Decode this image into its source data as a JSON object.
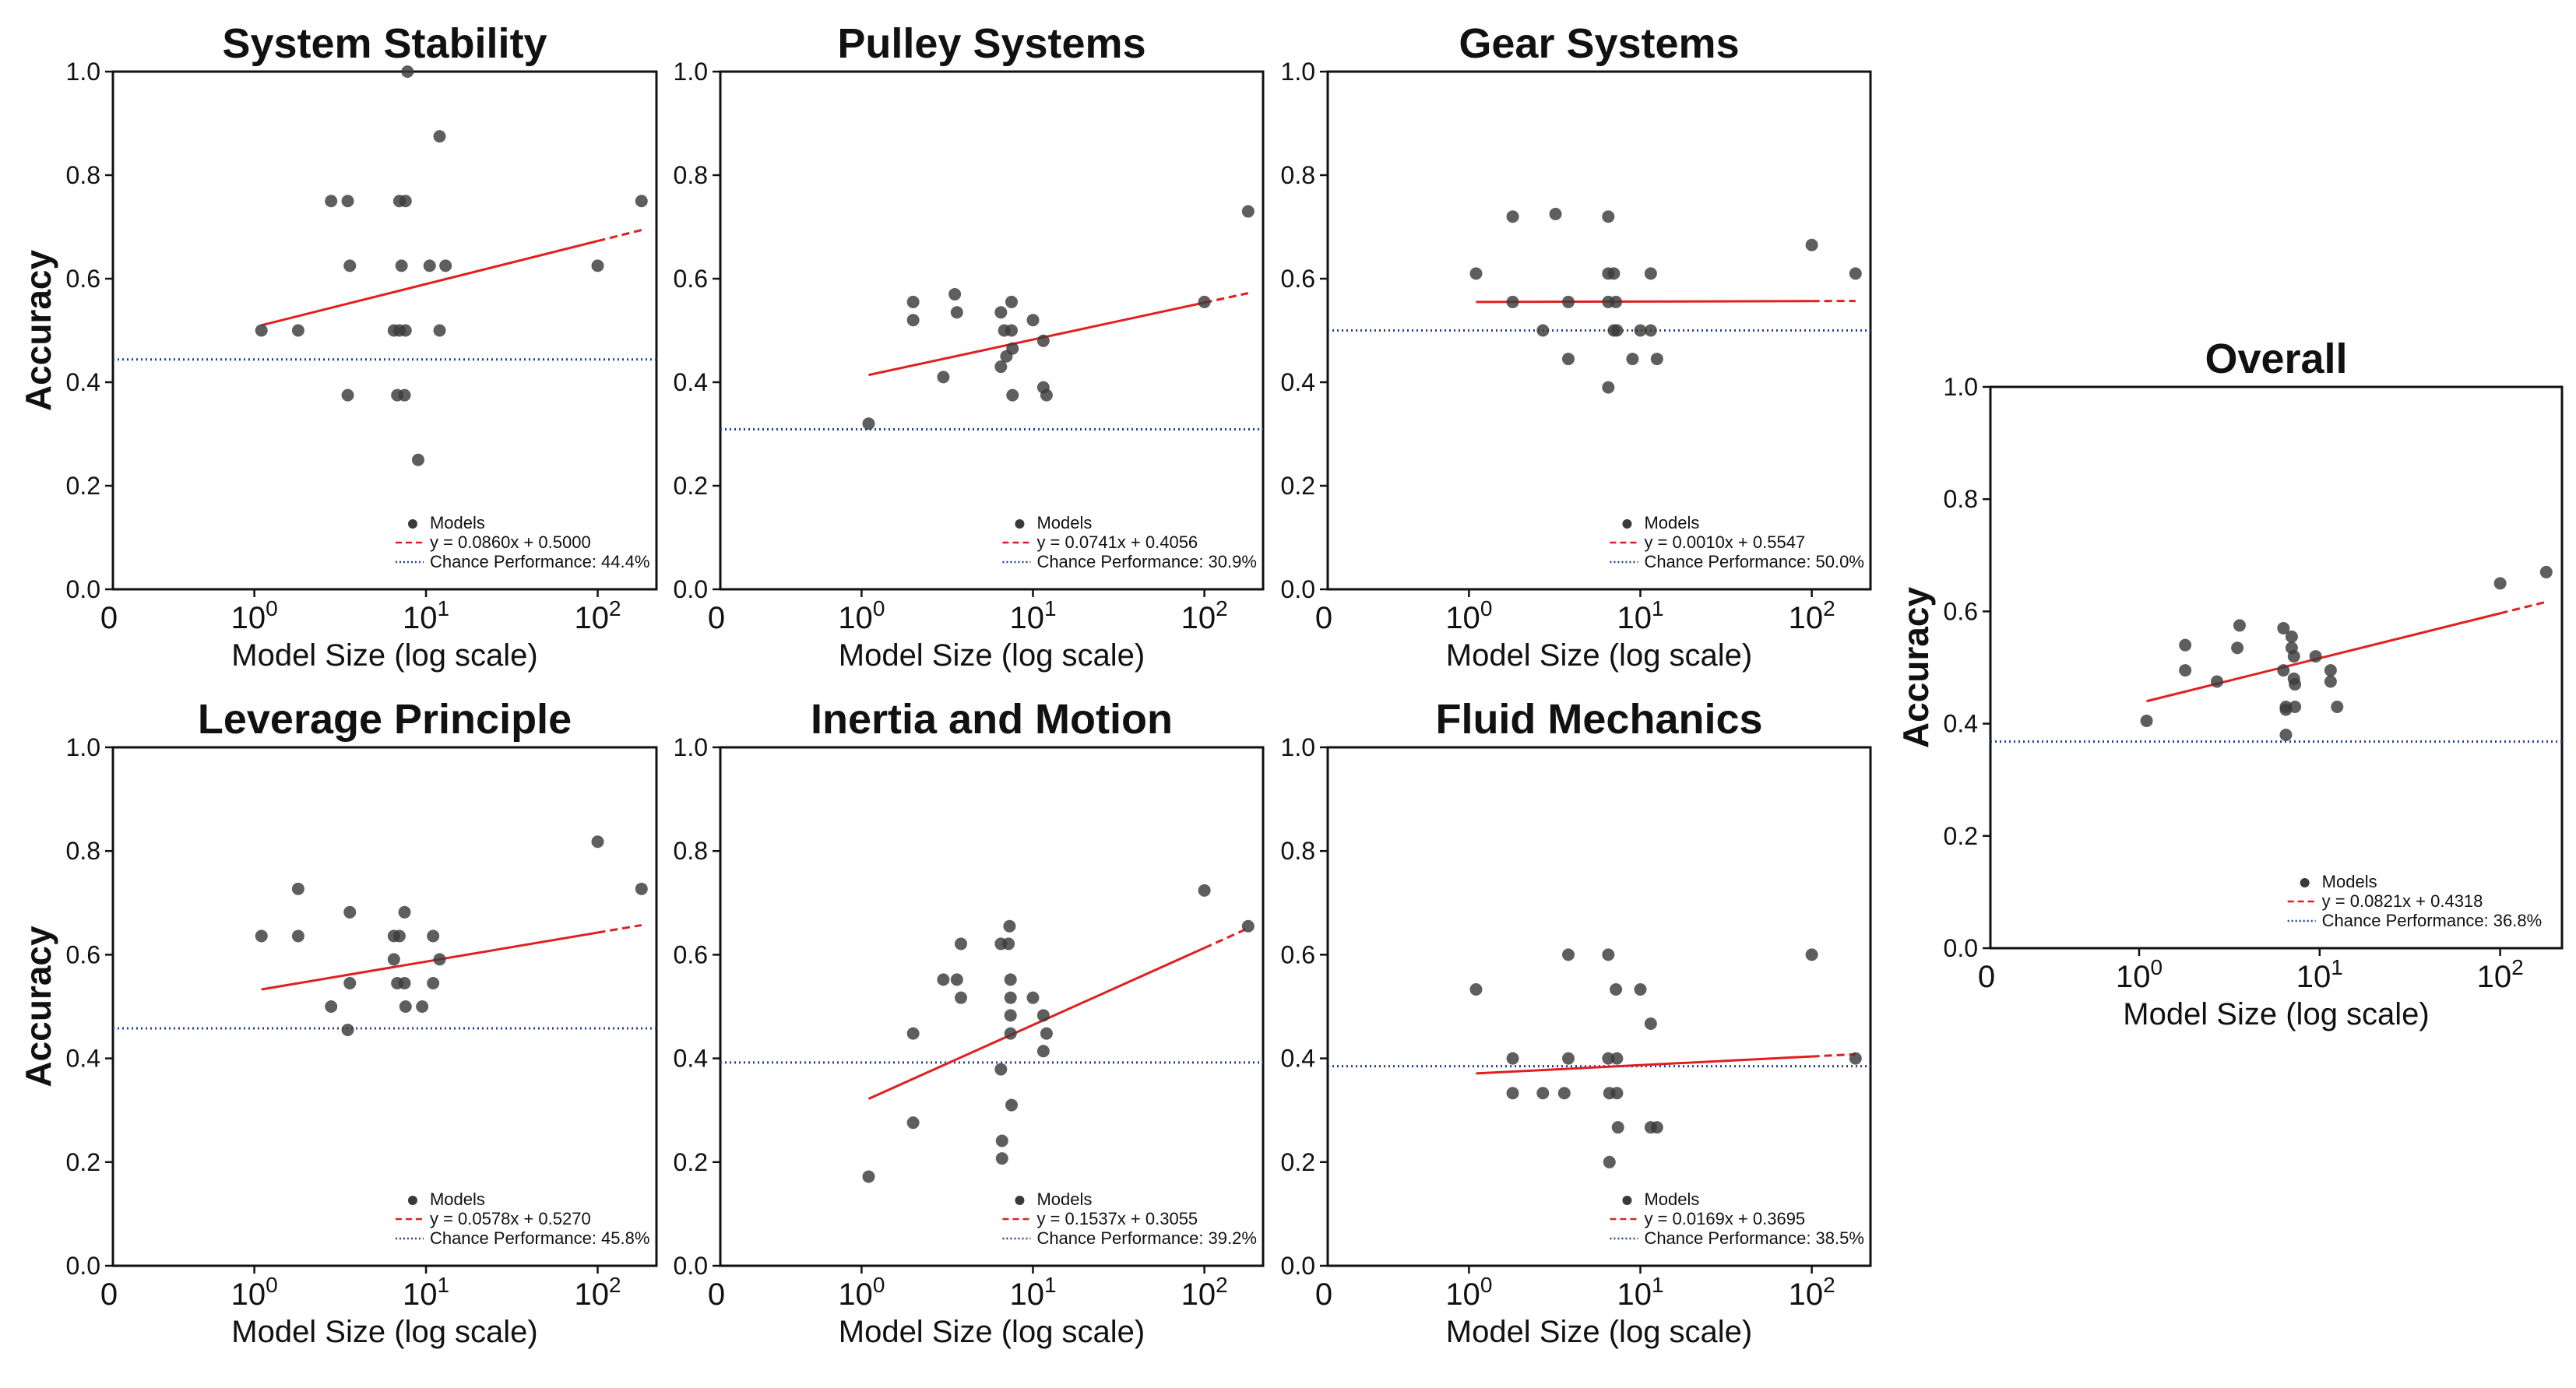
{
  "chart_data": [
    {
      "type": "scatter",
      "title": "System Stability",
      "xlabel": "Model Size (log scale)",
      "ylabel": "Accuracy",
      "xscale": "log",
      "ylim": [
        0,
        1.0
      ],
      "yticks": [
        "0.0",
        "0.2",
        "0.4",
        "0.6",
        "0.8",
        "1.0"
      ],
      "xticks": [
        {
          "base": "0",
          "exp": ""
        },
        {
          "base": "10",
          "exp": "0"
        },
        {
          "base": "10",
          "exp": "1"
        },
        {
          "base": "10",
          "exp": "2"
        }
      ],
      "points": [
        [
          1.1,
          0.5
        ],
        [
          1.8,
          0.5
        ],
        [
          2.8,
          0.75
        ],
        [
          3.5,
          0.75
        ],
        [
          3.5,
          0.375
        ],
        [
          3.6,
          0.625
        ],
        [
          6.5,
          0.5
        ],
        [
          6.8,
          0.375
        ],
        [
          7.0,
          0.5
        ],
        [
          7.0,
          0.75
        ],
        [
          7.2,
          0.625
        ],
        [
          7.5,
          0.375
        ],
        [
          7.6,
          0.75
        ],
        [
          7.8,
          1.0
        ],
        [
          7.6,
          0.5
        ],
        [
          9.0,
          0.25
        ],
        [
          10.5,
          0.625
        ],
        [
          12.0,
          0.875
        ],
        [
          12.0,
          0.5
        ],
        [
          13.0,
          0.625
        ],
        [
          100,
          0.625
        ],
        [
          180,
          0.75
        ]
      ],
      "fit": {
        "label": "y = 0.0860x + 0.5000",
        "x0": 1.1,
        "x1": 180,
        "y0": 0.51,
        "y1": 0.694
      },
      "chance": {
        "label": "Chance Performance: 44.4%",
        "value": 0.444
      },
      "legend": {
        "models": "Models",
        "position": "lower-right"
      }
    },
    {
      "type": "scatter",
      "title": "Pulley Systems",
      "xlabel": "Model Size (log scale)",
      "ylabel": "",
      "xscale": "log",
      "ylim": [
        0,
        1.0
      ],
      "yticks": [
        "0.0",
        "0.2",
        "0.4",
        "0.6",
        "0.8",
        "1.0"
      ],
      "xticks": [
        {
          "base": "0",
          "exp": ""
        },
        {
          "base": "10",
          "exp": "0"
        },
        {
          "base": "10",
          "exp": "1"
        },
        {
          "base": "10",
          "exp": "2"
        }
      ],
      "points": [
        [
          1.1,
          0.32
        ],
        [
          2.0,
          0.555
        ],
        [
          2.0,
          0.52
        ],
        [
          3.0,
          0.41
        ],
        [
          3.5,
          0.57
        ],
        [
          3.6,
          0.535
        ],
        [
          6.5,
          0.535
        ],
        [
          6.5,
          0.43
        ],
        [
          6.8,
          0.5
        ],
        [
          7.0,
          0.45
        ],
        [
          7.5,
          0.555
        ],
        [
          7.5,
          0.5
        ],
        [
          7.6,
          0.375
        ],
        [
          7.6,
          0.465
        ],
        [
          10.0,
          0.52
        ],
        [
          11.5,
          0.48
        ],
        [
          11.5,
          0.39
        ],
        [
          12.0,
          0.375
        ],
        [
          100,
          0.555
        ],
        [
          180,
          0.73
        ]
      ],
      "fit": {
        "label": "y = 0.0741x + 0.4056",
        "x0": 1.1,
        "x1": 180,
        "y0": 0.414,
        "y1": 0.572
      },
      "chance": {
        "label": "Chance Performance: 30.9%",
        "value": 0.309
      },
      "legend": {
        "models": "Models",
        "position": "lower-right"
      }
    },
    {
      "type": "scatter",
      "title": "Gear Systems",
      "xlabel": "Model Size (log scale)",
      "ylabel": "",
      "xscale": "log",
      "ylim": [
        0,
        1.0
      ],
      "yticks": [
        "0.0",
        "0.2",
        "0.4",
        "0.6",
        "0.8",
        "1.0"
      ],
      "xticks": [
        {
          "base": "0",
          "exp": ""
        },
        {
          "base": "10",
          "exp": "0"
        },
        {
          "base": "10",
          "exp": "1"
        },
        {
          "base": "10",
          "exp": "2"
        }
      ],
      "points": [
        [
          1.1,
          0.61
        ],
        [
          1.8,
          0.72
        ],
        [
          1.8,
          0.555
        ],
        [
          2.7,
          0.5
        ],
        [
          3.2,
          0.725
        ],
        [
          3.8,
          0.555
        ],
        [
          3.8,
          0.445
        ],
        [
          6.5,
          0.72
        ],
        [
          6.5,
          0.61
        ],
        [
          6.5,
          0.555
        ],
        [
          6.5,
          0.39
        ],
        [
          7.0,
          0.5
        ],
        [
          7.0,
          0.61
        ],
        [
          7.2,
          0.555
        ],
        [
          7.3,
          0.5
        ],
        [
          9.0,
          0.445
        ],
        [
          10.0,
          0.5
        ],
        [
          11.5,
          0.5
        ],
        [
          11.5,
          0.61
        ],
        [
          12.5,
          0.445
        ],
        [
          100,
          0.665
        ],
        [
          180,
          0.61
        ]
      ],
      "fit": {
        "label": "y = 0.0010x + 0.5547",
        "x0": 1.1,
        "x1": 180,
        "y0": 0.555,
        "y1": 0.557
      },
      "chance": {
        "label": "Chance Performance: 50.0%",
        "value": 0.5
      },
      "legend": {
        "models": "Models",
        "position": "lower-right"
      }
    },
    {
      "type": "scatter",
      "title": "Leverage Principle",
      "xlabel": "Model Size (log scale)",
      "ylabel": "Accuracy",
      "xscale": "log",
      "ylim": [
        0,
        1.0
      ],
      "yticks": [
        "0.0",
        "0.2",
        "0.4",
        "0.6",
        "0.8",
        "1.0"
      ],
      "xticks": [
        {
          "base": "0",
          "exp": ""
        },
        {
          "base": "10",
          "exp": "0"
        },
        {
          "base": "10",
          "exp": "1"
        },
        {
          "base": "10",
          "exp": "2"
        }
      ],
      "points": [
        [
          1.1,
          0.636
        ],
        [
          1.8,
          0.727
        ],
        [
          1.8,
          0.636
        ],
        [
          2.8,
          0.5
        ],
        [
          3.5,
          0.455
        ],
        [
          3.6,
          0.682
        ],
        [
          3.6,
          0.545
        ],
        [
          6.5,
          0.636
        ],
        [
          6.5,
          0.591
        ],
        [
          6.8,
          0.545
        ],
        [
          7.0,
          0.636
        ],
        [
          7.5,
          0.682
        ],
        [
          7.5,
          0.545
        ],
        [
          7.6,
          0.5
        ],
        [
          9.5,
          0.5
        ],
        [
          11.0,
          0.636
        ],
        [
          11.0,
          0.545
        ],
        [
          12.0,
          0.591
        ],
        [
          100,
          0.818
        ],
        [
          180,
          0.727
        ]
      ],
      "fit": {
        "label": "y = 0.0578x + 0.5270",
        "x0": 1.1,
        "x1": 180,
        "y0": 0.533,
        "y1": 0.657
      },
      "chance": {
        "label": "Chance Performance: 45.8%",
        "value": 0.458
      },
      "legend": {
        "models": "Models",
        "position": "lower-right"
      }
    },
    {
      "type": "scatter",
      "title": "Inertia and Motion",
      "xlabel": "Model Size (log scale)",
      "ylabel": "",
      "xscale": "log",
      "ylim": [
        0,
        1.0
      ],
      "yticks": [
        "0.0",
        "0.2",
        "0.4",
        "0.6",
        "0.8",
        "1.0"
      ],
      "xticks": [
        {
          "base": "0",
          "exp": ""
        },
        {
          "base": "10",
          "exp": "0"
        },
        {
          "base": "10",
          "exp": "1"
        },
        {
          "base": "10",
          "exp": "2"
        }
      ],
      "points": [
        [
          1.1,
          0.172
        ],
        [
          2.0,
          0.448
        ],
        [
          2.0,
          0.276
        ],
        [
          3.0,
          0.552
        ],
        [
          3.6,
          0.552
        ],
        [
          3.8,
          0.517
        ],
        [
          3.8,
          0.621
        ],
        [
          6.5,
          0.621
        ],
        [
          6.5,
          0.379
        ],
        [
          6.6,
          0.241
        ],
        [
          6.6,
          0.207
        ],
        [
          7.2,
          0.621
        ],
        [
          7.3,
          0.655
        ],
        [
          7.4,
          0.552
        ],
        [
          7.4,
          0.517
        ],
        [
          7.4,
          0.483
        ],
        [
          7.4,
          0.448
        ],
        [
          7.5,
          0.31
        ],
        [
          10.0,
          0.517
        ],
        [
          11.5,
          0.483
        ],
        [
          11.5,
          0.414
        ],
        [
          12.0,
          0.448
        ],
        [
          100,
          0.724
        ],
        [
          180,
          0.655
        ]
      ],
      "fit": {
        "label": "y = 0.1537x + 0.3055",
        "x0": 1.1,
        "x1": 180,
        "y0": 0.322,
        "y1": 0.651
      },
      "chance": {
        "label": "Chance Performance: 39.2%",
        "value": 0.392
      },
      "legend": {
        "models": "Models",
        "position": "lower-right"
      }
    },
    {
      "type": "scatter",
      "title": "Fluid Mechanics",
      "xlabel": "Model Size (log scale)",
      "ylabel": "",
      "xscale": "log",
      "ylim": [
        0,
        1.0
      ],
      "yticks": [
        "0.0",
        "0.2",
        "0.4",
        "0.6",
        "0.8",
        "1.0"
      ],
      "xticks": [
        {
          "base": "0",
          "exp": ""
        },
        {
          "base": "10",
          "exp": "0"
        },
        {
          "base": "10",
          "exp": "1"
        },
        {
          "base": "10",
          "exp": "2"
        }
      ],
      "points": [
        [
          1.1,
          0.533
        ],
        [
          1.8,
          0.4
        ],
        [
          1.8,
          0.333
        ],
        [
          2.7,
          0.333
        ],
        [
          3.6,
          0.333
        ],
        [
          3.8,
          0.6
        ],
        [
          3.8,
          0.4
        ],
        [
          6.5,
          0.6
        ],
        [
          6.5,
          0.4
        ],
        [
          6.6,
          0.333
        ],
        [
          6.6,
          0.2
        ],
        [
          7.2,
          0.533
        ],
        [
          7.3,
          0.4
        ],
        [
          7.3,
          0.333
        ],
        [
          7.4,
          0.267
        ],
        [
          10.0,
          0.533
        ],
        [
          11.5,
          0.467
        ],
        [
          11.5,
          0.267
        ],
        [
          12.5,
          0.267
        ],
        [
          100,
          0.6
        ],
        [
          180,
          0.4
        ]
      ],
      "fit": {
        "label": "y = 0.0169x + 0.3695",
        "x0": 1.1,
        "x1": 180,
        "y0": 0.371,
        "y1": 0.408
      },
      "chance": {
        "label": "Chance Performance: 38.5%",
        "value": 0.385
      },
      "legend": {
        "models": "Models",
        "position": "lower-right"
      }
    },
    {
      "type": "scatter",
      "title": "Overall",
      "xlabel": "Model Size (log scale)",
      "ylabel": "Accuracy",
      "xscale": "log",
      "ylim": [
        0,
        1.0
      ],
      "yticks": [
        "0.0",
        "0.2",
        "0.4",
        "0.6",
        "0.8",
        "1.0"
      ],
      "xticks": [
        {
          "base": "0",
          "exp": ""
        },
        {
          "base": "10",
          "exp": "0"
        },
        {
          "base": "10",
          "exp": "1"
        },
        {
          "base": "10",
          "exp": "2"
        }
      ],
      "points": [
        [
          1.1,
          0.405
        ],
        [
          1.8,
          0.54
        ],
        [
          1.8,
          0.495
        ],
        [
          2.7,
          0.475
        ],
        [
          3.5,
          0.535
        ],
        [
          3.6,
          0.575
        ],
        [
          6.3,
          0.57
        ],
        [
          6.3,
          0.495
        ],
        [
          6.5,
          0.43
        ],
        [
          6.5,
          0.425
        ],
        [
          6.5,
          0.38
        ],
        [
          7.0,
          0.555
        ],
        [
          7.0,
          0.535
        ],
        [
          7.2,
          0.52
        ],
        [
          7.2,
          0.48
        ],
        [
          7.3,
          0.47
        ],
        [
          7.3,
          0.43
        ],
        [
          9.5,
          0.52
        ],
        [
          11.5,
          0.495
        ],
        [
          11.5,
          0.475
        ],
        [
          12.5,
          0.43
        ],
        [
          100,
          0.65
        ],
        [
          180,
          0.67
        ]
      ],
      "fit": {
        "label": "y = 0.0821x + 0.4318",
        "x0": 1.1,
        "x1": 180,
        "y0": 0.44,
        "y1": 0.617
      },
      "chance": {
        "label": "Chance Performance: 36.8%",
        "value": 0.368
      },
      "legend": {
        "models": "Models",
        "position": "lower-right"
      }
    }
  ]
}
